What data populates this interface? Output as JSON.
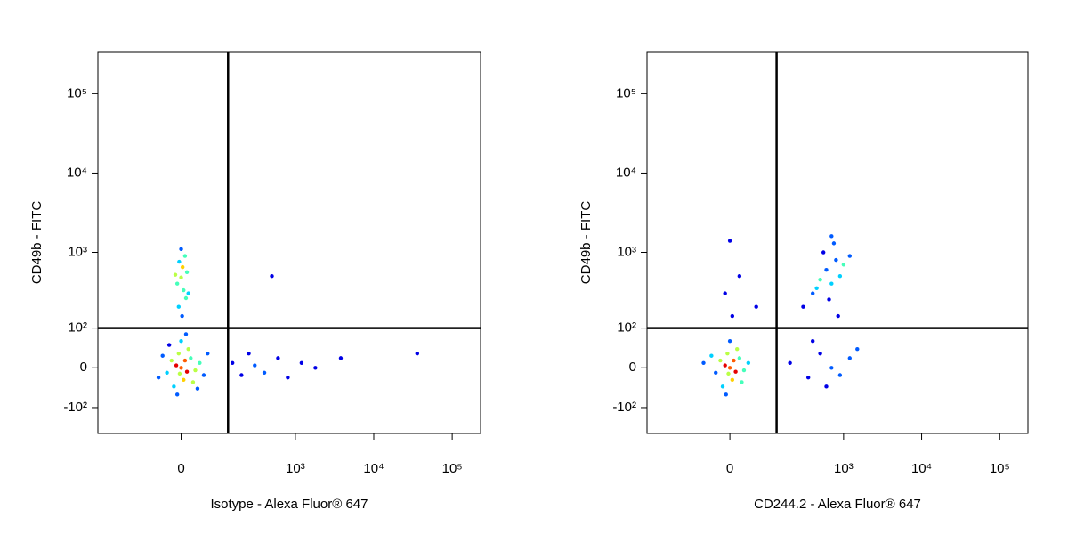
{
  "chart_data": [
    {
      "type": "scatter",
      "scale": "biexponential",
      "colormap": "jet",
      "x_label": "Isotype - Alexa Fluor® 647",
      "y_label": "CD49b - FITC",
      "xlim": [
        -400,
        230000
      ],
      "ylim": [
        -230,
        340000
      ],
      "xticks": [
        0,
        {
          "value": 1000,
          "label": "10³"
        },
        {
          "value": 10000,
          "label": "10⁴"
        },
        {
          "value": 100000,
          "label": "10⁵"
        }
      ],
      "yticks": [
        {
          "value": -100,
          "label": "-10²"
        },
        0,
        {
          "value": 100,
          "label": "10²"
        },
        {
          "value": 1000,
          "label": "10³"
        },
        {
          "value": 10000,
          "label": "10⁴"
        },
        {
          "value": 100000,
          "label": "10⁵"
        }
      ],
      "gate": {
        "x": 130,
        "y": 100
      },
      "x": [
        0,
        -10,
        12,
        -20,
        20,
        5,
        -30,
        30,
        -5,
        15,
        -15,
        40,
        -40,
        25,
        0,
        -8,
        50,
        -50,
        8,
        -3,
        60,
        -25,
        35,
        10,
        2,
        -5,
        10,
        5,
        -8,
        0,
        12,
        3,
        -4,
        8,
        0,
        15,
        -12,
        150,
        200,
        250,
        300,
        400,
        600,
        800,
        1200,
        1800,
        3800,
        35800,
        500
      ],
      "values": [
        0,
        5,
        -8,
        15,
        20,
        -25,
        -10,
        -5,
        30,
        40,
        -40,
        10,
        25,
        -30,
        60,
        -60,
        -15,
        -20,
        15,
        -12,
        30,
        50,
        -45,
        80,
        150,
        200,
        260,
        330,
        400,
        480,
        560,
        650,
        760,
        900,
        1100,
        300,
        520,
        10,
        -15,
        30,
        5,
        -10,
        20,
        -20,
        10,
        0,
        20,
        30,
        500
      ]
    },
    {
      "type": "scatter",
      "scale": "biexponential",
      "colormap": "jet",
      "x_label": "CD244.2 - Alexa Fluor® 647",
      "y_label": "CD49b - FITC",
      "xlim": [
        -400,
        230000
      ],
      "ylim": [
        -230,
        340000
      ],
      "xticks": [
        0,
        {
          "value": 1000,
          "label": "10³"
        },
        {
          "value": 10000,
          "label": "10⁴"
        },
        {
          "value": 100000,
          "label": "10⁵"
        }
      ],
      "yticks": [
        {
          "value": -100,
          "label": "-10²"
        },
        0,
        {
          "value": 100,
          "label": "10²"
        },
        {
          "value": 1000,
          "label": "10³"
        },
        {
          "value": 10000,
          "label": "10⁴"
        },
        {
          "value": 100000,
          "label": "10⁵"
        }
      ],
      "gate": {
        "x": 130,
        "y": 100
      },
      "x": [
        0,
        -10,
        12,
        -20,
        20,
        5,
        -30,
        30,
        -5,
        15,
        -15,
        40,
        -40,
        25,
        0,
        -8,
        8,
        -3,
        -60,
        5,
        -10,
        20,
        0,
        60,
        400,
        500,
        600,
        700,
        800,
        900,
        550,
        1000,
        650,
        750,
        450,
        1200,
        300,
        850,
        700,
        200,
        350,
        500,
        700,
        900,
        1200,
        400,
        600,
        1500
      ],
      "values": [
        0,
        5,
        -8,
        15,
        20,
        -25,
        -10,
        -5,
        30,
        40,
        -40,
        10,
        25,
        -30,
        60,
        -60,
        15,
        -12,
        10,
        150,
        300,
        500,
        1400,
        200,
        300,
        450,
        600,
        400,
        800,
        500,
        1000,
        700,
        250,
        1300,
        350,
        900,
        200,
        150,
        1600,
        10,
        -20,
        30,
        0,
        -15,
        20,
        60,
        -40,
        40
      ]
    }
  ]
}
